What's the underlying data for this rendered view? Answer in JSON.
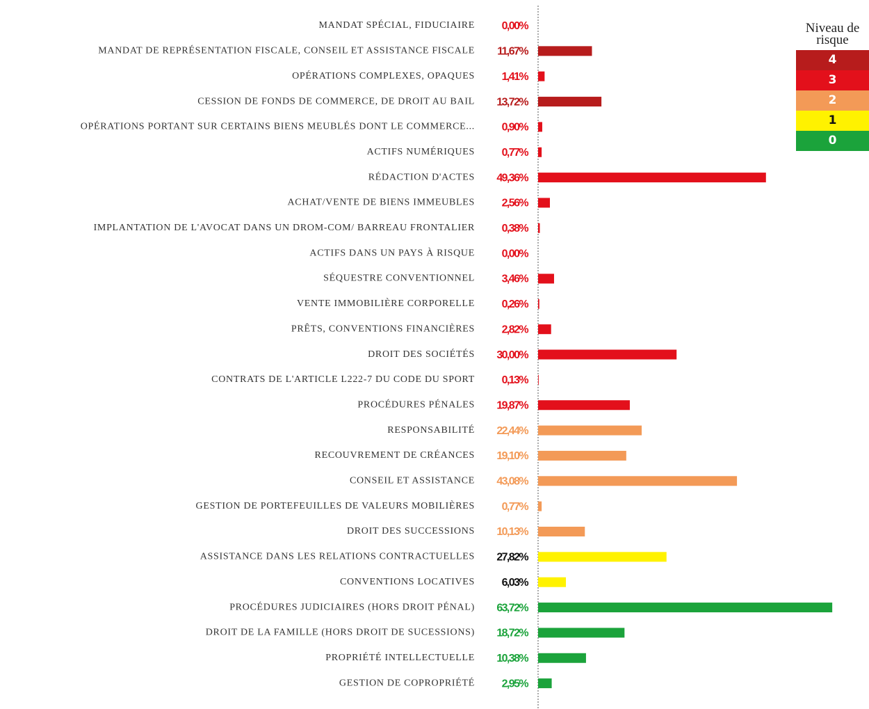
{
  "chart_data": {
    "type": "bar",
    "orientation": "horizontal",
    "categories": [
      "MANDAT SPÉCIAL, FIDUCIAIRE",
      "MANDAT DE REPRÉSENTATION FISCALE, CONSEIL ET ASSISTANCE FISCALE",
      "OPÉRATIONS COMPLEXES, OPAQUES",
      "CESSION DE FONDS DE COMMERCE, DE DROIT AU BAIL",
      "OPÉRATIONS PORTANT SUR CERTAINS BIENS MEUBLÉS DONT LE COMMERCE...",
      "ACTIFS NUMÉRIQUES",
      "RÉDACTION D'ACTES",
      "ACHAT/VENTE DE BIENS IMMEUBLES",
      "IMPLANTATION DE L'AVOCAT DANS UN DROM-COM/ BARREAU FRONTALIER",
      "ACTIFS DANS UN PAYS À RISQUE",
      "SÉQUESTRE CONVENTIONNEL",
      "VENTE IMMOBILIÈRE CORPORELLE",
      "PRÊTS, CONVENTIONS FINANCIÈRES",
      "DROIT DES SOCIÉTÉS",
      "CONTRATS DE L'ARTICLE L222-7 DU CODE DU SPORT",
      "PROCÉDURES PÉNALES",
      "RESPONSABILITÉ",
      "RECOUVREMENT DE CRÉANCES",
      "CONSEIL ET ASSISTANCE",
      "GESTION DE PORTEFEUILLES DE VALEURS MOBILIÈRES",
      "DROIT DES SUCCESSIONS",
      "ASSISTANCE DANS LES  RELATIONS  CONTRACTUELLES",
      "CONVENTIONS LOCATIVES",
      "PROCÉDURES JUDICIAIRES (HORS DROIT PÉNAL)",
      "DROIT DE LA FAMILLE (HORS DROIT DE SUCESSIONS)",
      "PROPRIÉTÉ INTELLECTUELLE",
      "GESTION DE COPROPRIÉTÉ"
    ],
    "values": [
      0.0,
      11.67,
      1.41,
      13.72,
      0.9,
      0.77,
      49.36,
      2.56,
      0.38,
      0.0,
      3.46,
      0.26,
      2.82,
      30.0,
      0.13,
      19.87,
      22.44,
      19.1,
      43.08,
      0.77,
      10.13,
      27.82,
      6.03,
      63.72,
      18.72,
      10.38,
      2.95
    ],
    "value_labels": [
      "0,00%",
      "11,67%",
      "1,41%",
      "13,72%",
      "0,90%",
      "0,77%",
      "49,36%",
      "2,56%",
      "0,38%",
      "0,00%",
      "3,46%",
      "0,26%",
      "2,82%",
      "30,00%",
      "0,13%",
      "19,87%",
      "22,44%",
      "19,10%",
      "43,08%",
      "0,77%",
      "10,13%",
      "27,82%",
      "6,03%",
      "63,72%",
      "18,72%",
      "10,38%",
      "2,95%"
    ],
    "risk": [
      3,
      4,
      3,
      4,
      3,
      3,
      3,
      3,
      3,
      3,
      3,
      3,
      3,
      3,
      3,
      3,
      2,
      2,
      2,
      2,
      2,
      1,
      1,
      0,
      0,
      0,
      0
    ],
    "xlim": [
      0,
      64
    ],
    "legend": {
      "title": "Niveau de risque",
      "levels": [
        4,
        3,
        2,
        1,
        0
      ],
      "colors": [
        "#b71c1c",
        "#e3101b",
        "#f39a57",
        "#fff200",
        "#1ba33b"
      ],
      "label_colors": [
        "#b71c1c",
        "#e3101b",
        "#f39a57",
        "#111111",
        "#1ba33b"
      ]
    }
  }
}
